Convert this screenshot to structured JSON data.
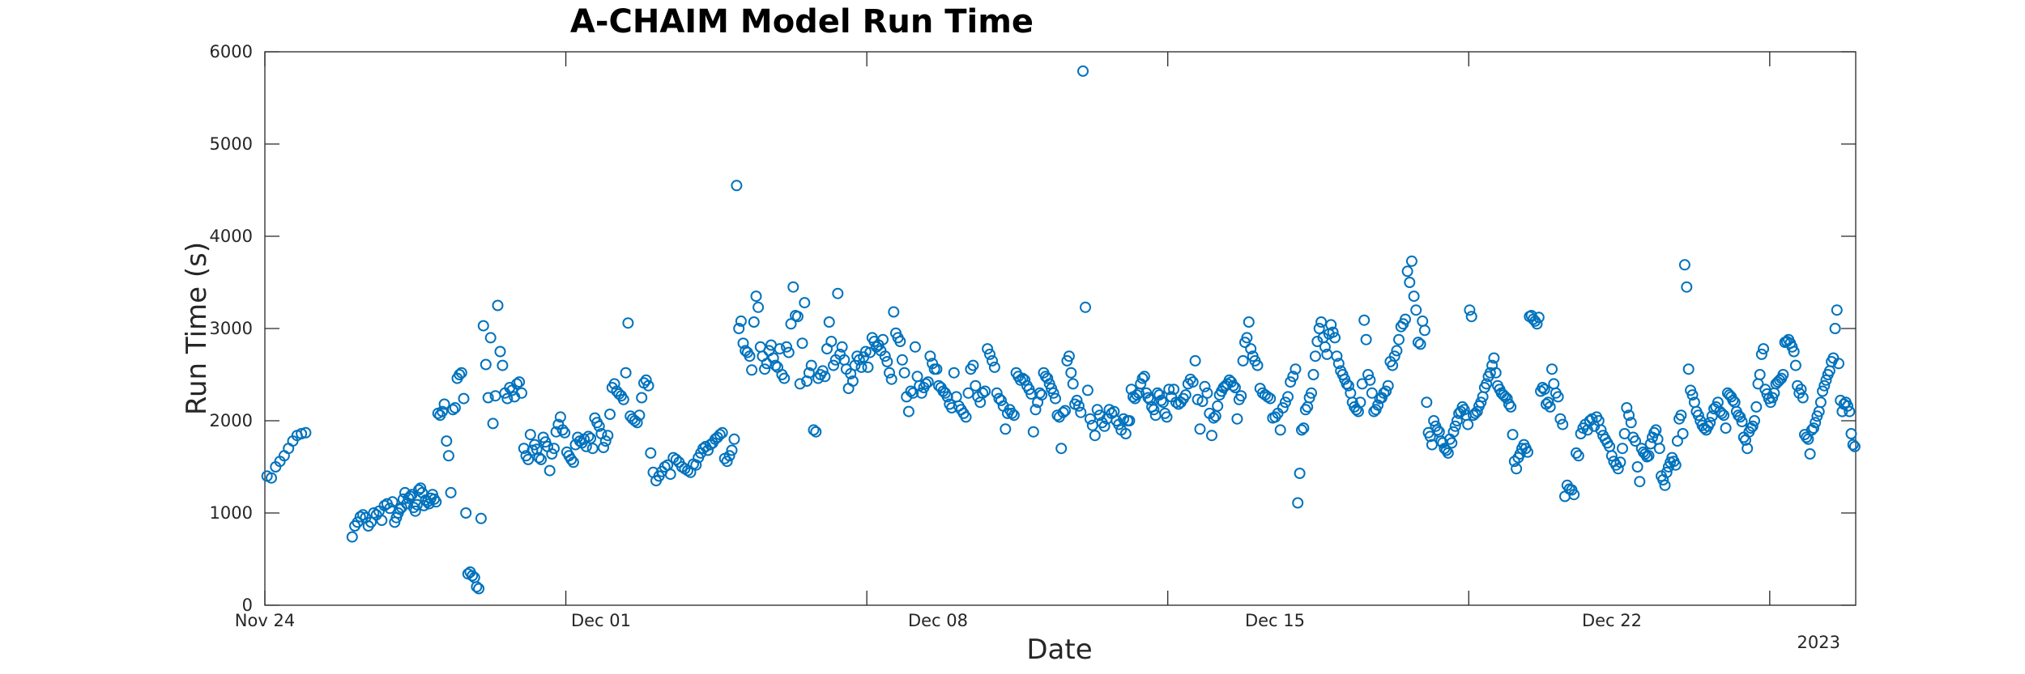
{
  "chart_data": {
    "type": "scatter",
    "title": "A-CHAIM Model Run Time",
    "xlabel": "Date",
    "ylabel": "Run Time (s)",
    "x_axis_kind": "date",
    "x_range": [
      "2022-11-24",
      "2022-12-31"
    ],
    "x_ticks": [
      "Nov 24",
      "Dec 01",
      "Dec 08",
      "Dec 15",
      "Dec 22"
    ],
    "x_secondary_label": "2023",
    "ylim": [
      0,
      6000
    ],
    "y_ticks": [
      "0",
      "1000",
      "2000",
      "3000",
      "4000",
      "5000",
      "6000"
    ],
    "grid": false,
    "legend": false,
    "marker": "open-circle",
    "color": "#0072BD",
    "points_by_day": [
      {
        "date": "2022-11-24",
        "runs": [
          1400,
          1380,
          1500,
          1560,
          1620,
          1700,
          1780,
          1840,
          1860,
          1870
        ]
      },
      {
        "date": "2022-11-26",
        "runs": [
          740,
          860,
          900,
          960,
          980,
          950,
          860,
          900,
          1000,
          980,
          1020,
          920,
          1080,
          1100,
          1050,
          1120
        ]
      },
      {
        "date": "2022-11-27",
        "runs": [
          900,
          950,
          1000,
          1040,
          1060,
          1150,
          1220,
          1100,
          1160,
          1180,
          1200,
          1060,
          1020,
          1090,
          1250,
          1270,
          1220,
          1080,
          1140,
          1120,
          1100,
          1160,
          1200,
          1150,
          1120
        ]
      },
      {
        "date": "2022-11-28",
        "runs": [
          2080,
          2060,
          2100,
          2180,
          1780,
          1620,
          1220,
          2120,
          2140,
          2460,
          2500,
          2520,
          2240,
          1000,
          340,
          360,
          320,
          300,
          200,
          180
        ]
      },
      {
        "date": "2022-11-29",
        "runs": [
          940,
          3030,
          2610,
          2250,
          2900,
          1970,
          2270,
          3250,
          2750,
          2600,
          2300,
          2240,
          2360,
          2330,
          2260,
          2400,
          2420,
          2300
        ]
      },
      {
        "date": "2022-11-30",
        "runs": [
          1700,
          1620,
          1580,
          1850,
          1680,
          1740,
          1690,
          1600,
          1580,
          1820,
          1770,
          1720,
          1460,
          1640,
          1700,
          1880,
          1960,
          2040,
          1900,
          1870
        ]
      },
      {
        "date": "2022-12-01",
        "runs": [
          1660,
          1620,
          1580,
          1550,
          1740,
          1820,
          1780,
          1760,
          1800,
          1720,
          1830,
          1810,
          1700,
          2030,
          1980,
          1940,
          1860,
          1710,
          1780,
          1840
        ]
      },
      {
        "date": "2022-12-02",
        "runs": [
          2070,
          2360,
          2400,
          2320,
          2290,
          2270,
          2230,
          2520,
          3060,
          2050,
          2020,
          2000,
          1980,
          2060,
          2250,
          2410,
          2440,
          2380,
          1650
        ]
      },
      {
        "date": "2022-12-03",
        "runs": [
          1440,
          1350,
          1400,
          1450,
          1500,
          1520,
          1420,
          1600,
          1580,
          1550,
          1500,
          1480,
          1460,
          1440,
          1530
        ]
      },
      {
        "date": "2022-12-04",
        "runs": [
          1520,
          1600,
          1650,
          1700,
          1720,
          1680,
          1740,
          1760,
          1800,
          1820,
          1850,
          1870,
          1590,
          1560,
          1620,
          1680,
          1800,
          4550
        ]
      },
      {
        "date": "2022-12-05",
        "runs": [
          3000,
          3080,
          2840,
          2760,
          2740,
          2700,
          2550,
          3070,
          3350,
          3230,
          2800,
          2700,
          2560,
          2620,
          2760,
          2820,
          2680,
          2600,
          2580,
          2780
        ]
      },
      {
        "date": "2022-12-06",
        "runs": [
          2500,
          2460,
          2800,
          2740,
          3050,
          3450,
          3140,
          3130,
          2400,
          2840,
          3280,
          2430,
          2520,
          2600,
          1900,
          1880,
          2460,
          2500,
          2540
        ]
      },
      {
        "date": "2022-12-07",
        "runs": [
          2480,
          2780,
          3070,
          2860,
          2600,
          2660,
          3380,
          2720,
          2800,
          2660,
          2560,
          2350,
          2510,
          2430,
          2600,
          2700,
          2660,
          2580,
          2690,
          2750
        ]
      },
      {
        "date": "2022-12-08",
        "runs": [
          2580,
          2740,
          2900,
          2860,
          2800,
          2820,
          2760,
          2880,
          2700,
          2640,
          2520,
          2450,
          3180,
          2950,
          2900,
          2860,
          2660,
          2520,
          2260,
          2100
        ]
      },
      {
        "date": "2022-12-09",
        "runs": [
          2320,
          2300,
          2800,
          2480,
          2380,
          2300,
          2360,
          2400,
          2420,
          2700,
          2620,
          2560,
          2560,
          2380,
          2360,
          2320,
          2300,
          2260,
          2180,
          2140
        ]
      },
      {
        "date": "2022-12-10",
        "runs": [
          2520,
          2260,
          2160,
          2120,
          2080,
          2040,
          2300,
          2560,
          2600,
          2380,
          2260,
          2200,
          2300,
          2320,
          2780,
          2720,
          2650,
          2580
        ]
      },
      {
        "date": "2022-12-11",
        "runs": [
          2300,
          2240,
          2220,
          2160,
          1910,
          2080,
          2120,
          2080,
          2060,
          2520,
          2480,
          2440,
          2460,
          2440,
          2380,
          2340,
          2290,
          1880,
          2120,
          2200
        ]
      },
      {
        "date": "2022-12-12",
        "runs": [
          2300,
          2280,
          2520,
          2480,
          2460,
          2400,
          2350,
          2300,
          2240,
          2060,
          2040,
          1700,
          2090,
          2110,
          2650,
          2700,
          2520,
          2400,
          2180,
          2220,
          2160,
          2090
        ]
      },
      {
        "date": "2022-12-13",
        "runs": [
          5790,
          3230,
          2330,
          2020,
          1950,
          1840,
          2120,
          2060,
          1980,
          1940,
          2020,
          2120,
          2080,
          2100,
          2000,
          1960,
          1900,
          2020
        ]
      },
      {
        "date": "2022-12-14",
        "runs": [
          1860,
          2000,
          2000,
          2340,
          2260,
          2240,
          2280,
          2300,
          2400,
          2460,
          2480,
          2300,
          2250,
          2230,
          2150,
          2120,
          2060,
          2300,
          2280,
          2220,
          2200,
          2080,
          2040
        ]
      },
      {
        "date": "2022-12-15",
        "runs": [
          2340,
          2260,
          2340,
          2200,
          2180,
          2200,
          2240,
          2280,
          2400,
          2450,
          2420,
          2650,
          2230,
          1910,
          2210,
          2370,
          2300,
          2080
        ]
      },
      {
        "date": "2022-12-16",
        "runs": [
          1840,
          2030,
          2050,
          2160,
          2280,
          2320,
          2360,
          2380,
          2400,
          2440,
          2420,
          2380,
          2360,
          2020,
          2230,
          2270,
          2650,
          2850,
          2900,
          3070,
          2780,
          2700
        ]
      },
      {
        "date": "2022-12-17",
        "runs": [
          2650,
          2600,
          2350,
          2300,
          2280,
          2260,
          2240,
          2030,
          2040,
          2080,
          1900,
          2140,
          2200,
          2260,
          2420,
          2480,
          2560
        ]
      },
      {
        "date": "2022-12-18",
        "runs": [
          1110,
          1430,
          1900,
          1920,
          2120,
          2150,
          2250,
          2300,
          2500,
          2700,
          2860,
          3000,
          3070,
          2900,
          2800,
          2720,
          2940,
          3040,
          2960,
          2900,
          2700,
          2620
        ]
      },
      {
        "date": "2022-12-19",
        "runs": [
          2540,
          2500,
          2450,
          2400,
          2380,
          2300,
          2200,
          2150,
          2120,
          2100,
          2200,
          2400,
          3090,
          2880,
          2500,
          2440,
          2300,
          2100,
          2120,
          2170,
          2240,
          2250
        ]
      },
      {
        "date": "2022-12-20",
        "runs": [
          2300,
          2320,
          2380,
          2640,
          2600,
          2700,
          2760,
          2880,
          3020,
          3050,
          3100,
          3620,
          3500,
          3730,
          3350,
          3200,
          2850,
          2830,
          3080,
          2980
        ]
      },
      {
        "date": "2022-12-21",
        "runs": [
          2200,
          1870,
          1830,
          1740,
          2000,
          1940,
          1900,
          1880,
          1780,
          1760,
          1700,
          1680,
          1650,
          1800,
          1760,
          1880,
          1940,
          2000,
          2080,
          2100,
          2150,
          2120,
          2060,
          1960
        ]
      },
      {
        "date": "2022-12-22",
        "runs": [
          3200,
          3130,
          2060,
          2080,
          2100,
          2160,
          2200,
          2260,
          2360,
          2400,
          2480,
          2520,
          2600,
          2680,
          2520,
          2380,
          2340,
          2300,
          2280,
          2260,
          2240,
          2180,
          2150
        ]
      },
      {
        "date": "2022-12-23",
        "runs": [
          1850,
          1560,
          1480,
          1600,
          1640,
          1700,
          1740,
          1700,
          1660,
          3130,
          3140,
          3100,
          3080,
          3050,
          3120,
          2320,
          2360,
          2340,
          2180,
          2200,
          2150,
          2560,
          2400
        ]
      },
      {
        "date": "2022-12-24",
        "runs": [
          2300,
          2260,
          2020,
          1960,
          1180,
          1300,
          1260,
          1250,
          1200,
          1650,
          1620,
          1860,
          1920,
          1960,
          1900,
          2000,
          2020,
          1940,
          2040
        ]
      },
      {
        "date": "2022-12-25",
        "runs": [
          2000,
          1900,
          1840,
          1800,
          1760,
          1720,
          1620,
          1560,
          1520,
          1480,
          1550,
          1700,
          1860,
          2140,
          2060,
          1980,
          1820,
          1780,
          1500,
          1340
        ]
      },
      {
        "date": "2022-12-26",
        "runs": [
          1700,
          1660,
          1640,
          1610,
          1620,
          1750,
          1820,
          1870,
          1900,
          1800,
          1700,
          1400,
          1360,
          1300,
          1440,
          1500,
          1550,
          1600,
          1560,
          1520,
          1780,
          2020,
          2060,
          1860
        ]
      },
      {
        "date": "2022-12-27",
        "runs": [
          3690,
          3450,
          2560,
          2330,
          2280,
          2200,
          2100,
          2060,
          2000,
          1950,
          1920,
          1900,
          1940,
          1980,
          2050,
          2130,
          2150,
          2200,
          2100,
          2080,
          2060,
          1920
        ]
      },
      {
        "date": "2022-12-28",
        "runs": [
          2300,
          2280,
          2260,
          2220,
          2200,
          2100,
          2060,
          2040,
          1990,
          1820,
          1790,
          1700,
          1880,
          1920,
          1940,
          2000,
          2150,
          2400,
          2500,
          2720,
          2780,
          2340,
          2290,
          2240
        ]
      },
      {
        "date": "2022-12-29",
        "runs": [
          2200,
          2250,
          2300,
          2400,
          2420,
          2440,
          2460,
          2500,
          2850,
          2860,
          2880,
          2840,
          2800,
          2750,
          2600,
          2380,
          2300,
          2340,
          2250,
          1850,
          1820,
          1800,
          1640,
          1900
        ]
      },
      {
        "date": "2022-12-30",
        "runs": [
          1920,
          1980,
          2050,
          2100,
          2200,
          2320,
          2380,
          2440,
          2500,
          2540,
          2640,
          2680,
          3000,
          3200,
          2620,
          2220,
          2100,
          2180,
          2200,
          2160,
          2100,
          1860,
          1740,
          1720
        ]
      }
    ]
  }
}
